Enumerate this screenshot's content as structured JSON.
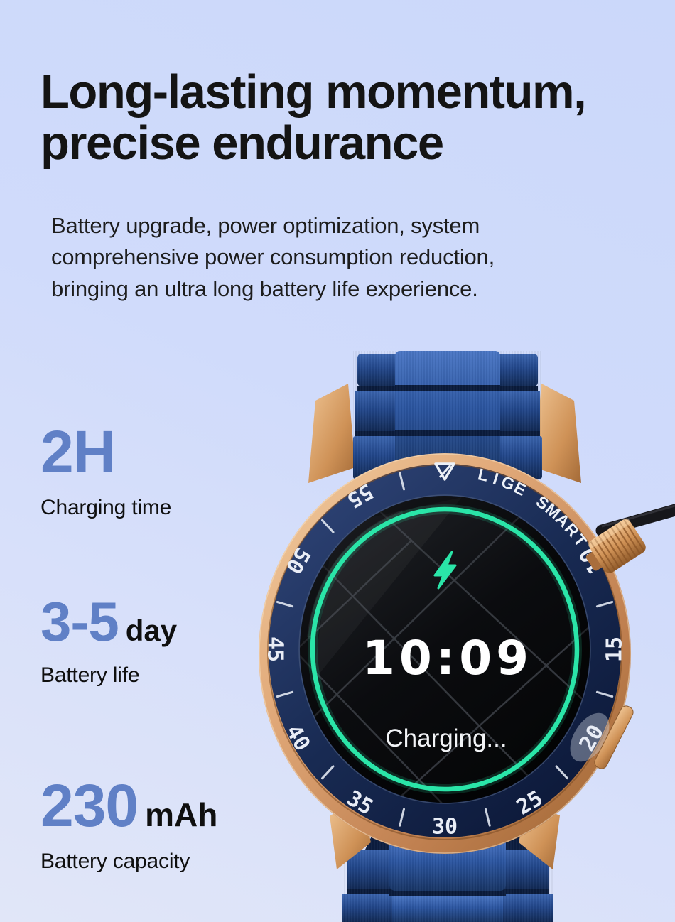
{
  "page": {
    "background_top": "#cfdcfc",
    "background_bottom": "#e1e6f8"
  },
  "header": {
    "title_line1": "Long-lasting momentum,",
    "title_line2": "precise endurance",
    "description_lines": [
      "Battery upgrade, power optimization, system",
      "comprehensive power consumption reduction,",
      "bringing an ultra long battery life experience."
    ]
  },
  "stats": [
    {
      "value": "2H",
      "unit": "",
      "label": "Charging time"
    },
    {
      "value": "3-5",
      "unit": "day",
      "label": "Battery life"
    },
    {
      "value": "230",
      "unit": "mAh",
      "label": "Battery capacity"
    }
  ],
  "watch": {
    "brand_text": "LIGE SMART",
    "screen": {
      "time": "10:09",
      "status": "Charging..."
    },
    "bezel_numbers": [
      {
        "label": "10",
        "angle": 240
      },
      {
        "label": "15",
        "angle": 270
      },
      {
        "label": "20",
        "angle": 300
      },
      {
        "label": "25",
        "angle": 330
      },
      {
        "label": "30",
        "angle": 0
      },
      {
        "label": "35",
        "angle": 30
      },
      {
        "label": "40",
        "angle": 60
      },
      {
        "label": "45",
        "angle": 90
      },
      {
        "label": "50",
        "angle": 120
      },
      {
        "label": "55",
        "angle": 150
      }
    ],
    "tick_angles": [
      15,
      45,
      75,
      105,
      135,
      165,
      255,
      285,
      315,
      345
    ],
    "colors": {
      "accent_teal": "#2ae5a8",
      "case_gold": "#d9a271",
      "bezel_navy": "#16284f",
      "strap_blue": "#24498f",
      "stat_blue": "#6080c6"
    }
  }
}
